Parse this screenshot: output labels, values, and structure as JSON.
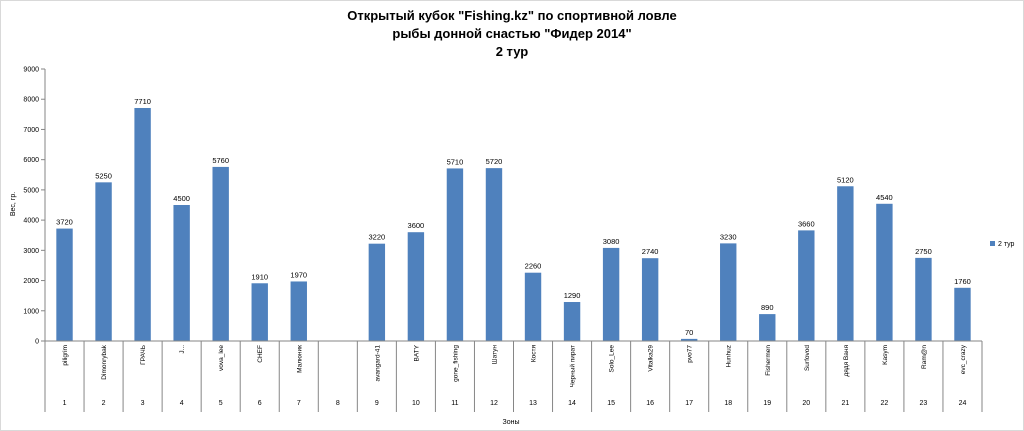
{
  "chart_data": {
    "type": "bar",
    "title_lines": [
      "Открытый кубок \"Fishing.kz\" по спортивной ловле",
      "рыбы донной снастью \"Фидер 2014\"",
      "2 тур"
    ],
    "ylabel": "Вес, гр.",
    "xlabel": "Зоны",
    "ylim": [
      0,
      9000
    ],
    "yticks": [
      0,
      1000,
      2000,
      3000,
      4000,
      5000,
      6000,
      7000,
      8000,
      9000
    ],
    "grid": false,
    "legend_position": "right",
    "bar_color": "#4f81bd",
    "categories": [
      {
        "name": "piligrim",
        "zone": "1"
      },
      {
        "name": "Dimonrybak",
        "zone": "2"
      },
      {
        "name": "ГРАЧЬ",
        "zone": "3"
      },
      {
        "name": "J...",
        "zone": "4"
      },
      {
        "name": "vova_lee",
        "zone": "5"
      },
      {
        "name": "CHEF",
        "zone": "6"
      },
      {
        "name": "Малюник",
        "zone": "7"
      },
      {
        "name": "",
        "zone": "8"
      },
      {
        "name": "avangard-41",
        "zone": "9"
      },
      {
        "name": "BATY",
        "zone": "10"
      },
      {
        "name": "gone_fishing",
        "zone": "11"
      },
      {
        "name": "Шатун",
        "zone": "12"
      },
      {
        "name": "Костя",
        "zone": "13"
      },
      {
        "name": "Черный пират",
        "zone": "14"
      },
      {
        "name": "Solo_Lee",
        "zone": "15"
      },
      {
        "name": "Vitalka29",
        "zone": "16"
      },
      {
        "name": "pvo77",
        "zone": "17"
      },
      {
        "name": "Hunhuz",
        "zone": "18"
      },
      {
        "name": "Fishermen",
        "zone": "19"
      },
      {
        "name": "Surfovod",
        "zone": "20"
      },
      {
        "name": "дядя Ваня",
        "zone": "21"
      },
      {
        "name": "Kasym",
        "zone": "22"
      },
      {
        "name": "Ram@n",
        "zone": "23"
      },
      {
        "name": "evc_crazy",
        "zone": "24"
      }
    ],
    "series": [
      {
        "name": "2 тур",
        "values": [
          3720,
          5250,
          7710,
          4500,
          5760,
          1910,
          1970,
          null,
          3220,
          3600,
          5710,
          5720,
          2260,
          1290,
          3080,
          2740,
          70,
          3230,
          890,
          3660,
          5120,
          4540,
          2750,
          1760
        ]
      }
    ]
  }
}
